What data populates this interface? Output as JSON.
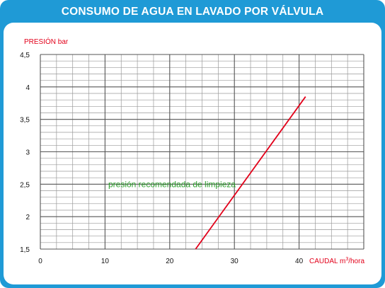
{
  "chart_data": {
    "type": "line",
    "title": "CONSUMO DE AGUA EN LAVADO POR VÁLVULA",
    "ylabel": "PRESIÓN bar",
    "xlabel_main": "CAUDAL m",
    "xlabel_sup": "3",
    "xlabel_tail": "/hora",
    "xlim": [
      0,
      50
    ],
    "ylim": [
      1.5,
      4.5
    ],
    "x_ticks": [
      {
        "value": 0,
        "label": "0"
      },
      {
        "value": 10,
        "label": "10"
      },
      {
        "value": 20,
        "label": "20"
      },
      {
        "value": 30,
        "label": "30"
      },
      {
        "value": 40,
        "label": "40"
      }
    ],
    "y_ticks": [
      {
        "value": 1.5,
        "label": "1,5"
      },
      {
        "value": 2,
        "label": "2"
      },
      {
        "value": 2.5,
        "label": "2,5"
      },
      {
        "value": 3,
        "label": "3"
      },
      {
        "value": 3.5,
        "label": "3,5"
      },
      {
        "value": 4,
        "label": "4"
      },
      {
        "value": 4.5,
        "label": "4,5"
      }
    ],
    "grid": true,
    "series": [
      {
        "color": "#e2001a",
        "x": [
          24,
          41
        ],
        "y": [
          1.5,
          3.85
        ]
      }
    ],
    "annotation": {
      "text": "presión recomendada de limpieza",
      "x": 10.5,
      "y": 2.5,
      "color": "#2a9d2a"
    }
  }
}
